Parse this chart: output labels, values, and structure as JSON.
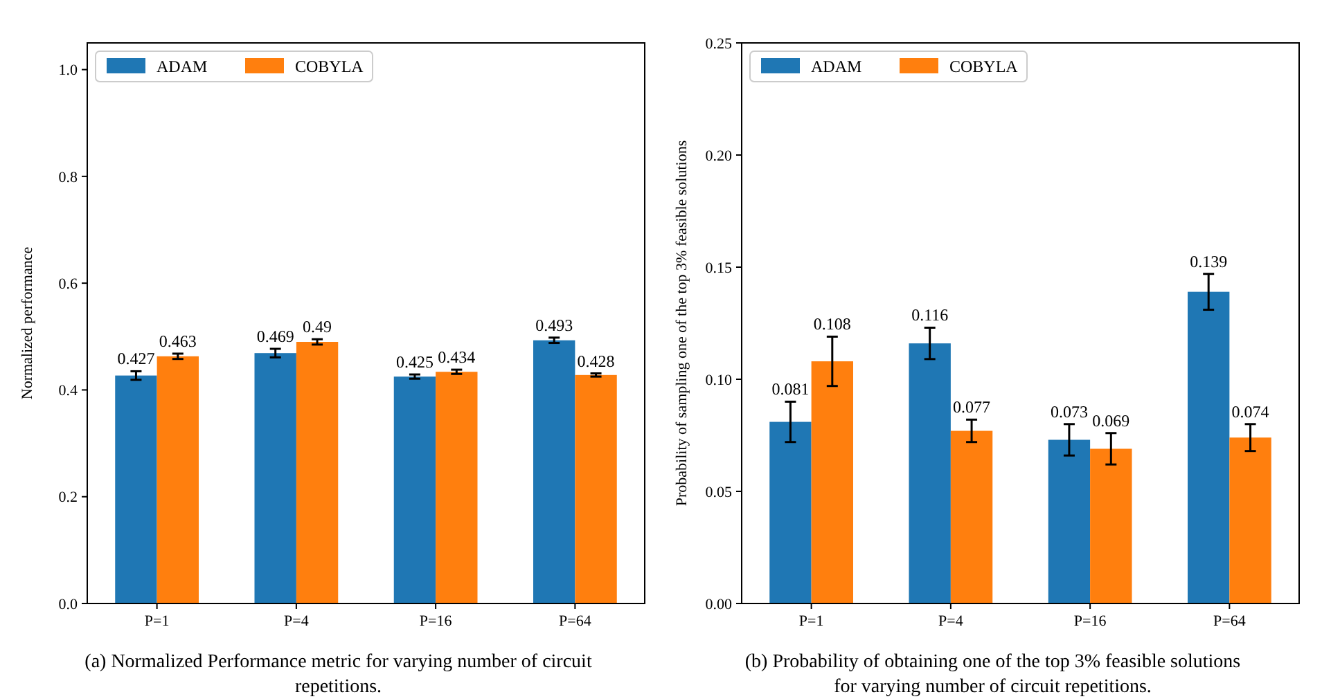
{
  "chart_data": [
    {
      "type": "bar",
      "ylabel": "Normalized performance",
      "categories": [
        "P=1",
        "P=4",
        "P=16",
        "P=64"
      ],
      "ylim": [
        0,
        1.05
      ],
      "yticks": [
        {
          "value": 0,
          "label": "0.0"
        },
        0.2,
        0.4,
        0.6,
        0.8,
        {
          "value": 1,
          "label": "1.0"
        }
      ],
      "legend": "top left",
      "data_labels": true,
      "grid": false,
      "series": [
        {
          "name": "ADAM",
          "color": "#1f77b4",
          "values": [
            0.427,
            0.469,
            0.425,
            0.493
          ],
          "errors": [
            0.008,
            0.008,
            0.004,
            0.005
          ]
        },
        {
          "name": "COBYLA",
          "color": "#ff7f0e",
          "values": [
            0.463,
            0.49,
            0.434,
            0.428
          ],
          "errors": [
            0.005,
            0.005,
            0.004,
            0.003
          ]
        }
      ],
      "annotations": [
        "(a) Normalized Performance metric for varying number of circuit repetitions."
      ]
    },
    {
      "type": "bar",
      "ylabel": "Probability of sampling one of the top 3% feasible solutions",
      "categories": [
        "P=1",
        "P=4",
        "P=16",
        "P=64"
      ],
      "ylim": [
        0,
        0.25
      ],
      "yticks": [
        {
          "value": 0,
          "label": "0.00"
        },
        0.05,
        {
          "value": 0.1,
          "label": "0.10"
        },
        0.15,
        {
          "value": 0.2,
          "label": "0.20"
        },
        0.25
      ],
      "legend": "top left",
      "data_labels": true,
      "grid": false,
      "series": [
        {
          "name": "ADAM",
          "color": "#1f77b4",
          "values": [
            0.081,
            0.116,
            0.073,
            0.139
          ],
          "errors": [
            0.009,
            0.007,
            0.007,
            0.008
          ]
        },
        {
          "name": "COBYLA",
          "color": "#ff7f0e",
          "values": [
            0.108,
            0.077,
            0.069,
            0.074
          ],
          "errors": [
            0.011,
            0.005,
            0.007,
            0.006
          ]
        }
      ],
      "annotations": [
        "(b) Probability of obtaining one of the top 3% feasible solutions for varying number of circuit repetitions."
      ]
    }
  ]
}
